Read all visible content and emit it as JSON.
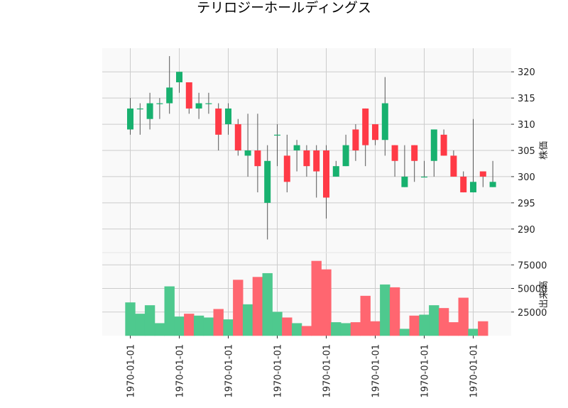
{
  "chart_data": {
    "type": "candlestick",
    "title": "テリロジーホールディングス",
    "price_panel": {
      "ylabel": "株価",
      "yticks": [
        290,
        295,
        300,
        305,
        310,
        315,
        320
      ],
      "ylim": [
        285.5,
        324.5
      ]
    },
    "volume_panel": {
      "ylabel": "出来高",
      "yticks": [
        25000,
        50000,
        75000
      ],
      "yticks_labels": [
        "25000",
        "50000",
        "75000"
      ],
      "ylim": [
        0,
        88000
      ]
    },
    "xtick_labels": [
      "1970-01-01",
      "1970-01-01",
      "1970-01-01",
      "1970-01-01",
      "1970-01-01",
      "1970-01-01",
      "1970-01-01",
      "1970-01-01"
    ],
    "xtick_index": [
      0,
      5,
      10,
      15,
      20,
      25,
      30,
      35
    ],
    "colors": {
      "up": "#18b16f",
      "down": "#ff3a46",
      "up_volume": "#4ec98e",
      "down_volume": "#ff6670",
      "wick": "#555555",
      "grid": "#cccccc",
      "panel_bg": "#f9f9f9"
    },
    "candles": [
      {
        "open": 309,
        "high": 315,
        "low": 308,
        "close": 313,
        "volume": 35000
      },
      {
        "open": 313,
        "high": 314,
        "low": 308,
        "close": 313,
        "volume": 23000
      },
      {
        "open": 311,
        "high": 316,
        "low": 309,
        "close": 314,
        "volume": 32000
      },
      {
        "open": 314,
        "high": 315,
        "low": 311,
        "close": 314,
        "volume": 13000
      },
      {
        "open": 314,
        "high": 323,
        "low": 312,
        "close": 317,
        "volume": 52000
      },
      {
        "open": 318,
        "high": 320,
        "low": 316,
        "close": 320,
        "volume": 20000
      },
      {
        "open": 318,
        "high": 318,
        "low": 312,
        "close": 313,
        "volume": 23000
      },
      {
        "open": 313,
        "high": 316,
        "low": 311,
        "close": 314,
        "volume": 21000
      },
      {
        "open": 314,
        "high": 316,
        "low": 312,
        "close": 314,
        "volume": 19000
      },
      {
        "open": 313,
        "high": 314,
        "low": 305,
        "close": 308,
        "volume": 28000
      },
      {
        "open": 310,
        "high": 314,
        "low": 308,
        "close": 313,
        "volume": 17000
      },
      {
        "open": 310,
        "high": 311,
        "low": 304,
        "close": 305,
        "volume": 59000
      },
      {
        "open": 304,
        "high": 312,
        "low": 300,
        "close": 305,
        "volume": 33000
      },
      {
        "open": 305,
        "high": 312,
        "low": 297,
        "close": 302,
        "volume": 62000
      },
      {
        "open": 295,
        "high": 306,
        "low": 288,
        "close": 303,
        "volume": 66000
      },
      {
        "open": 308,
        "high": 310,
        "low": 302,
        "close": 308,
        "volume": 25000
      },
      {
        "open": 304,
        "high": 308,
        "low": 297,
        "close": 299,
        "volume": 19000
      },
      {
        "open": 305,
        "high": 307,
        "low": 301,
        "close": 306,
        "volume": 13000
      },
      {
        "open": 305,
        "high": 306,
        "low": 300,
        "close": 302,
        "volume": 10000
      },
      {
        "open": 305,
        "high": 306,
        "low": 296,
        "close": 301,
        "volume": 79000
      },
      {
        "open": 305,
        "high": 306,
        "low": 292,
        "close": 296,
        "volume": 70000
      },
      {
        "open": 300,
        "high": 303,
        "low": 300,
        "close": 302,
        "volume": 14000
      },
      {
        "open": 302,
        "high": 308,
        "low": 302,
        "close": 306,
        "volume": 13000
      },
      {
        "open": 309,
        "high": 310,
        "low": 303,
        "close": 305,
        "volume": 14000
      },
      {
        "open": 313,
        "high": 313,
        "low": 302,
        "close": 306,
        "volume": 42000
      },
      {
        "open": 310,
        "high": 310,
        "low": 306,
        "close": 307,
        "volume": 15000
      },
      {
        "open": 307,
        "high": 319,
        "low": 304,
        "close": 314,
        "volume": 54000
      },
      {
        "open": 306,
        "high": 306,
        "low": 300,
        "close": 303,
        "volume": 51000
      },
      {
        "open": 298,
        "high": 306,
        "low": 298,
        "close": 300,
        "volume": 7000
      },
      {
        "open": 306,
        "high": 306,
        "low": 299,
        "close": 303,
        "volume": 21000
      },
      {
        "open": 300,
        "high": 303,
        "low": 300,
        "close": 300,
        "volume": 22000
      },
      {
        "open": 303,
        "high": 309,
        "low": 300,
        "close": 309,
        "volume": 32000
      },
      {
        "open": 308,
        "high": 309,
        "low": 304,
        "close": 304,
        "volume": 29000
      },
      {
        "open": 304,
        "high": 305,
        "low": 300,
        "close": 300,
        "volume": 14000
      },
      {
        "open": 300,
        "high": 301,
        "low": 297,
        "close": 297,
        "volume": 40000
      },
      {
        "open": 297,
        "high": 311,
        "low": 297,
        "close": 299,
        "volume": 7000
      },
      {
        "open": 301,
        "high": 301,
        "low": 298,
        "close": 300,
        "volume": 15000
      },
      {
        "open": 298,
        "high": 303,
        "low": 298,
        "close": 299,
        "volume": 0
      }
    ]
  }
}
